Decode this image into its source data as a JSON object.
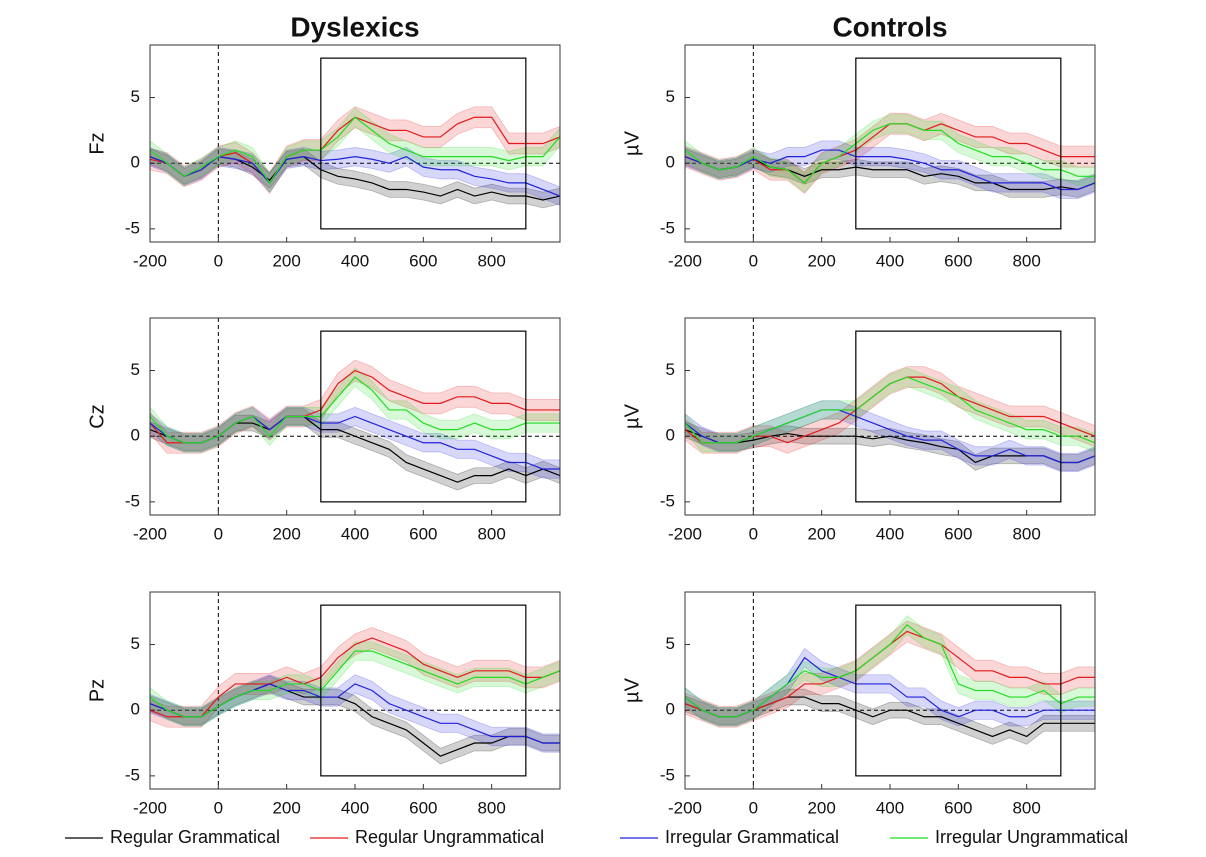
{
  "chart_data": [
    {
      "type": "line",
      "title": "Dyslexics",
      "ylabel": "Fz",
      "x": [
        -200,
        -150,
        -100,
        -50,
        0,
        50,
        100,
        150,
        200,
        250,
        300,
        350,
        400,
        450,
        500,
        550,
        600,
        650,
        700,
        750,
        800,
        850,
        900,
        950,
        1000
      ],
      "xlim": [
        -200,
        1000
      ],
      "ylim": [
        -6,
        9
      ],
      "xticks": [
        -200,
        0,
        200,
        400,
        600,
        800
      ],
      "yticks": [
        -5,
        0,
        5
      ],
      "window": {
        "x": [
          300,
          900
        ],
        "y": [
          -5,
          8
        ]
      },
      "series": [
        {
          "name": "Regular Grammatical",
          "color": "#000000",
          "error": 0.6,
          "values": [
            0.5,
            0,
            -1,
            -0.5,
            0.5,
            0.3,
            -0.3,
            -1.3,
            0.3,
            0.5,
            -0.5,
            -1,
            -1.2,
            -1.5,
            -2,
            -2,
            -2.2,
            -2.5,
            -2,
            -2.5,
            -2.2,
            -2.5,
            -2.5,
            -2.8,
            -2.5
          ]
        },
        {
          "name": "Regular Ungrammatical",
          "color": "#e41a1c",
          "error": 0.8,
          "values": [
            0.3,
            0,
            -1,
            -0.5,
            0.5,
            0.8,
            0,
            -1.5,
            0.5,
            1,
            1,
            2.5,
            3.5,
            3,
            2.5,
            2.5,
            2,
            2,
            3,
            3.5,
            3.5,
            1.5,
            1.5,
            1.5,
            2
          ]
        },
        {
          "name": "Irregular Grammatical",
          "color": "#2222dd",
          "error": 0.7,
          "values": [
            0.5,
            0,
            -1,
            -0.5,
            0.5,
            0.3,
            0,
            -1.5,
            0.3,
            0.5,
            0.2,
            0.3,
            0.5,
            0.3,
            0,
            0.5,
            -0.3,
            -0.5,
            -0.5,
            -1,
            -1.2,
            -1.5,
            -1.5,
            -2,
            -2.5
          ]
        },
        {
          "name": "Irregular Ungrammatical",
          "color": "#22dd22",
          "error": 0.7,
          "values": [
            1,
            0,
            -1,
            -0.3,
            0.5,
            1,
            0.5,
            -1.5,
            0.5,
            1,
            1,
            2,
            3.5,
            2.5,
            1.5,
            1,
            0.5,
            0.5,
            0.5,
            0.5,
            0.5,
            0.2,
            0.5,
            0.5,
            2
          ]
        }
      ]
    },
    {
      "type": "line",
      "title": "Controls",
      "ylabel": "µV",
      "x": [
        -200,
        -150,
        -100,
        -50,
        0,
        50,
        100,
        150,
        200,
        250,
        300,
        350,
        400,
        450,
        500,
        550,
        600,
        650,
        700,
        750,
        800,
        850,
        900,
        950,
        1000
      ],
      "xlim": [
        -200,
        1000
      ],
      "ylim": [
        -6,
        9
      ],
      "xticks": [
        -200,
        0,
        200,
        400,
        600,
        800
      ],
      "yticks": [
        -5,
        0,
        5
      ],
      "window": {
        "x": [
          300,
          900
        ],
        "y": [
          -5,
          8
        ]
      },
      "series": [
        {
          "name": "Regular Grammatical",
          "color": "#000000",
          "error": 0.6,
          "values": [
            0.5,
            0,
            -0.5,
            -0.3,
            0.3,
            -0.3,
            -0.5,
            -1,
            -0.5,
            -0.5,
            -0.3,
            -0.5,
            -0.5,
            -0.5,
            -1,
            -0.8,
            -1,
            -1.5,
            -1.5,
            -2,
            -2,
            -2,
            -1.8,
            -2,
            -1.5
          ]
        },
        {
          "name": "Regular Ungrammatical",
          "color": "#e41a1c",
          "error": 0.8,
          "values": [
            0.5,
            0,
            -0.5,
            -0.3,
            0.3,
            -0.5,
            -0.5,
            -1.5,
            0,
            0.5,
            1,
            2,
            3,
            3,
            2.5,
            3,
            2.5,
            2,
            2,
            1.5,
            1.5,
            1,
            0.5,
            0.5,
            0.5
          ]
        },
        {
          "name": "Irregular Grammatical",
          "color": "#2222dd",
          "error": 0.7,
          "values": [
            0.5,
            0,
            -0.5,
            -0.3,
            0.3,
            0,
            0.5,
            0.5,
            1,
            1,
            0.5,
            0.5,
            0.5,
            0.3,
            0,
            -0.5,
            -0.5,
            -1,
            -1.5,
            -1.5,
            -1.5,
            -1.5,
            -2,
            -2,
            -1.5
          ]
        },
        {
          "name": "Irregular Ungrammatical",
          "color": "#22dd22",
          "error": 0.7,
          "values": [
            1,
            0,
            -0.5,
            -0.3,
            0.5,
            -0.3,
            -0.5,
            -1.5,
            0,
            0.5,
            1.5,
            2.5,
            3,
            3,
            2.5,
            2.5,
            1.5,
            1,
            0.5,
            0.5,
            0,
            -0.5,
            -0.5,
            -1,
            -1
          ]
        }
      ]
    },
    {
      "type": "line",
      "ylabel": "Cz",
      "x": [
        -200,
        -150,
        -100,
        -50,
        0,
        50,
        100,
        150,
        200,
        250,
        300,
        350,
        400,
        450,
        500,
        550,
        600,
        650,
        700,
        750,
        800,
        850,
        900,
        950,
        1000
      ],
      "xlim": [
        -200,
        1000
      ],
      "ylim": [
        -6,
        9
      ],
      "xticks": [
        -200,
        0,
        200,
        400,
        600,
        800
      ],
      "yticks": [
        -5,
        0,
        5
      ],
      "window": {
        "x": [
          300,
          900
        ],
        "y": [
          -5,
          8
        ]
      },
      "series": [
        {
          "name": "Regular Grammatical",
          "color": "#000000",
          "error": 0.6,
          "values": [
            0.5,
            0,
            -0.5,
            -0.5,
            0,
            1,
            1,
            0.5,
            1.5,
            1.5,
            0.5,
            0.5,
            0,
            -0.5,
            -1,
            -2,
            -2.5,
            -3,
            -3.5,
            -3,
            -3,
            -2.5,
            -3,
            -2.5,
            -3
          ]
        },
        {
          "name": "Regular Ungrammatical",
          "color": "#e41a1c",
          "error": 0.8,
          "values": [
            1,
            -0.5,
            -0.5,
            -0.5,
            0,
            1,
            1.5,
            0.5,
            1.5,
            1.5,
            2,
            4,
            5,
            4.5,
            3.5,
            3,
            2.5,
            2.5,
            3,
            3,
            2.5,
            2.5,
            2,
            2,
            2
          ]
        },
        {
          "name": "Irregular Grammatical",
          "color": "#2222dd",
          "error": 0.7,
          "values": [
            1,
            0,
            -0.5,
            -0.5,
            0,
            1,
            1.5,
            0.5,
            1.5,
            1.5,
            1,
            1,
            1.5,
            1,
            0.5,
            0,
            -0.5,
            -0.5,
            -1,
            -1,
            -1.5,
            -2,
            -2,
            -2.5,
            -2.5
          ]
        },
        {
          "name": "Irregular Ungrammatical",
          "color": "#22dd22",
          "error": 0.7,
          "values": [
            1.5,
            0,
            -0.5,
            -0.5,
            0,
            1,
            1.5,
            0,
            1.5,
            1.5,
            1.5,
            3,
            4.5,
            3.5,
            2,
            2,
            1,
            0.5,
            0.5,
            1,
            0.5,
            0.5,
            1,
            1,
            1
          ]
        }
      ]
    },
    {
      "type": "line",
      "ylabel": "µV",
      "x": [
        -200,
        -150,
        -100,
        -50,
        0,
        50,
        100,
        150,
        200,
        250,
        300,
        350,
        400,
        450,
        500,
        550,
        600,
        650,
        700,
        750,
        800,
        850,
        900,
        950,
        1000
      ],
      "xlim": [
        -200,
        1000
      ],
      "ylim": [
        -6,
        9
      ],
      "xticks": [
        -200,
        0,
        200,
        400,
        600,
        800
      ],
      "yticks": [
        -5,
        0,
        5
      ],
      "window": {
        "x": [
          300,
          900
        ],
        "y": [
          -5,
          8
        ]
      },
      "series": [
        {
          "name": "Regular Grammatical",
          "color": "#000000",
          "error": 0.6,
          "values": [
            0.5,
            0,
            -0.5,
            -0.5,
            -0.3,
            0,
            0.2,
            0,
            0,
            0,
            0,
            -0.2,
            0,
            -0.3,
            -0.5,
            -0.8,
            -1,
            -2,
            -1.5,
            -1.5,
            -1.5,
            -1.5,
            -2,
            -2,
            -1.5
          ]
        },
        {
          "name": "Regular Ungrammatical",
          "color": "#e41a1c",
          "error": 0.8,
          "values": [
            0.5,
            -0.5,
            -0.5,
            -0.5,
            0,
            0,
            -0.5,
            0,
            0.5,
            1,
            2,
            3,
            4,
            4.5,
            4.5,
            4,
            3,
            2.5,
            2,
            1.5,
            1.5,
            1.5,
            1,
            0.5,
            0
          ]
        },
        {
          "name": "Irregular Grammatical",
          "color": "#2222dd",
          "error": 0.7,
          "values": [
            1,
            0,
            -0.5,
            -0.5,
            0,
            0.5,
            1,
            1.5,
            2,
            2,
            1.5,
            1,
            0.5,
            0,
            -0.3,
            -0.3,
            -1,
            -1.5,
            -1.5,
            -1,
            -1.5,
            -1.5,
            -2,
            -2,
            -1.5
          ]
        },
        {
          "name": "Irregular Ungrammatical",
          "color": "#22dd22",
          "error": 0.7,
          "values": [
            1,
            -0.5,
            -0.5,
            -0.5,
            0,
            0.5,
            1,
            1.5,
            2,
            2,
            2,
            3,
            4,
            4.5,
            4,
            3.5,
            3,
            2,
            1.5,
            1,
            0.5,
            0.5,
            0,
            0,
            -0.5
          ]
        }
      ]
    },
    {
      "type": "line",
      "ylabel": "Pz",
      "x": [
        -200,
        -150,
        -100,
        -50,
        0,
        50,
        100,
        150,
        200,
        250,
        300,
        350,
        400,
        450,
        500,
        550,
        600,
        650,
        700,
        750,
        800,
        850,
        900,
        950,
        1000
      ],
      "xlim": [
        -200,
        1000
      ],
      "ylim": [
        -6,
        9
      ],
      "xticks": [
        -200,
        0,
        200,
        400,
        600,
        800
      ],
      "yticks": [
        -5,
        0,
        5
      ],
      "window": {
        "x": [
          300,
          900
        ],
        "y": [
          -5,
          8
        ]
      },
      "series": [
        {
          "name": "Regular Grammatical",
          "color": "#000000",
          "error": 0.6,
          "values": [
            0.5,
            0,
            -0.5,
            -0.5,
            0.3,
            1,
            1.5,
            2,
            1.5,
            1,
            1,
            1,
            0.5,
            -0.5,
            -1,
            -1.5,
            -2.5,
            -3.5,
            -3,
            -2.5,
            -2.5,
            -2,
            -2,
            -2.5,
            -2.5
          ]
        },
        {
          "name": "Regular Ungrammatical",
          "color": "#e41a1c",
          "error": 0.8,
          "values": [
            0,
            -0.5,
            -0.5,
            -0.5,
            1,
            2,
            2,
            2,
            2.5,
            2,
            2.5,
            4,
            5,
            5.5,
            5,
            4.5,
            3.5,
            3,
            2.5,
            3,
            3,
            3,
            2.5,
            2.5,
            3
          ]
        },
        {
          "name": "Irregular Grammatical",
          "color": "#2222dd",
          "error": 0.7,
          "values": [
            0.5,
            0,
            -0.5,
            -0.5,
            0.3,
            1,
            1.5,
            2,
            1.5,
            1.5,
            1,
            1,
            2,
            1.5,
            0.5,
            0,
            -0.5,
            -1,
            -1,
            -1.5,
            -2,
            -2,
            -2,
            -2.5,
            -2.5
          ]
        },
        {
          "name": "Irregular Ungrammatical",
          "color": "#22dd22",
          "error": 0.7,
          "values": [
            1,
            0,
            -0.5,
            -0.5,
            0.3,
            1,
            1.5,
            1.5,
            2,
            2,
            1.5,
            3,
            4.5,
            4.5,
            4,
            3.5,
            3,
            2.5,
            2,
            2.5,
            2.5,
            2.5,
            2,
            2.5,
            3
          ]
        }
      ]
    },
    {
      "type": "line",
      "ylabel": "µV",
      "x": [
        -200,
        -150,
        -100,
        -50,
        0,
        50,
        100,
        150,
        200,
        250,
        300,
        350,
        400,
        450,
        500,
        550,
        600,
        650,
        700,
        750,
        800,
        850,
        900,
        950,
        1000
      ],
      "xlim": [
        -200,
        1000
      ],
      "ylim": [
        -6,
        9
      ],
      "xticks": [
        -200,
        0,
        200,
        400,
        600,
        800
      ],
      "yticks": [
        -5,
        0,
        5
      ],
      "window": {
        "x": [
          300,
          900
        ],
        "y": [
          -5,
          8
        ]
      },
      "series": [
        {
          "name": "Regular Grammatical",
          "color": "#000000",
          "error": 0.6,
          "values": [
            0.5,
            0,
            -0.5,
            -0.5,
            0,
            0.5,
            1,
            1,
            0.5,
            0.5,
            0,
            -0.5,
            0,
            0,
            -0.5,
            -0.5,
            -1,
            -1.5,
            -2,
            -1.5,
            -2,
            -1,
            -1,
            -1,
            -1
          ]
        },
        {
          "name": "Regular Ungrammatical",
          "color": "#e41a1c",
          "error": 0.8,
          "values": [
            0.5,
            0,
            -0.5,
            -0.5,
            0,
            0.5,
            1,
            2,
            2,
            2.5,
            3,
            4,
            5,
            6,
            5.5,
            5,
            4,
            3,
            3,
            2.5,
            2.5,
            2,
            2,
            2.5,
            2.5
          ]
        },
        {
          "name": "Irregular Grammatical",
          "color": "#2222dd",
          "error": 0.7,
          "values": [
            1,
            0,
            -0.5,
            -0.5,
            0,
            1,
            2,
            4,
            3,
            2.5,
            2,
            2,
            2,
            1,
            1,
            0,
            -0.5,
            0,
            0,
            -0.5,
            -0.5,
            0,
            0,
            0,
            0
          ]
        },
        {
          "name": "Irregular Ungrammatical",
          "color": "#22dd22",
          "error": 0.7,
          "values": [
            1,
            0,
            -0.5,
            -0.5,
            0,
            1,
            2,
            3,
            2.5,
            2.5,
            3,
            4,
            5,
            6.5,
            5.5,
            5,
            2,
            1.5,
            1.5,
            1,
            1,
            1.5,
            0.5,
            1,
            1
          ]
        }
      ]
    }
  ]
}
